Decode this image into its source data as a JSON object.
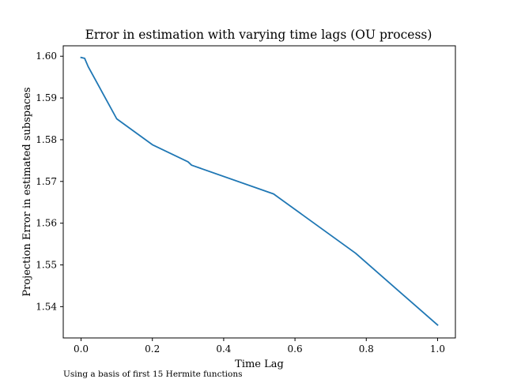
{
  "chart_data": {
    "type": "line",
    "title": "Error in estimation with varying time lags (OU process)",
    "xlabel": "Time Lag",
    "ylabel": "Projection Error in estimated subspaces",
    "xlim": [
      -0.05,
      1.05
    ],
    "ylim": [
      1.5325,
      1.6025
    ],
    "xticks": [
      0.0,
      0.2,
      0.4,
      0.6,
      0.8,
      1.0
    ],
    "xtick_labels": [
      "0.0",
      "0.2",
      "0.4",
      "0.6",
      "0.8",
      "1.0"
    ],
    "yticks": [
      1.54,
      1.55,
      1.56,
      1.57,
      1.58,
      1.59,
      1.6
    ],
    "ytick_labels": [
      "1.54",
      "1.55",
      "1.56",
      "1.57",
      "1.58",
      "1.59",
      "1.60"
    ],
    "grid": false,
    "series": [
      {
        "color": "#1f77b4",
        "x": [
          0.0,
          0.01,
          0.02,
          0.1,
          0.2,
          0.3,
          0.31,
          0.54,
          0.77,
          1.0
        ],
        "y": [
          1.5997,
          1.5995,
          1.5975,
          1.585,
          1.5788,
          1.5747,
          1.5739,
          1.567,
          1.5528,
          1.5356
        ]
      }
    ]
  },
  "caption": "Using a basis of first 15 Hermite functions"
}
